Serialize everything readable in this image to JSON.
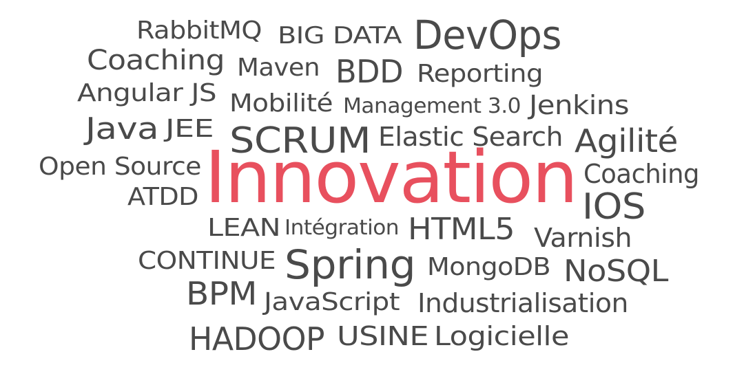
{
  "colors": {
    "text": "#4a4a4a",
    "highlight": "#e8505e",
    "background": "#ffffff"
  },
  "words": [
    {
      "id": "rabbitmq",
      "text": "RabbitMQ"
    },
    {
      "id": "big-data",
      "text": "BIG DATA"
    },
    {
      "id": "devops",
      "text": "DevOps"
    },
    {
      "id": "coaching-1",
      "text": "Coaching"
    },
    {
      "id": "maven",
      "text": "Maven"
    },
    {
      "id": "bdd",
      "text": "BDD"
    },
    {
      "id": "reporting",
      "text": "Reporting"
    },
    {
      "id": "angular-js",
      "text": "Angular JS"
    },
    {
      "id": "mobilite",
      "text": "Mobilité"
    },
    {
      "id": "management-3-0",
      "text": "Management 3.0"
    },
    {
      "id": "jenkins",
      "text": "Jenkins"
    },
    {
      "id": "java",
      "text": "Java"
    },
    {
      "id": "jee",
      "text": "JEE"
    },
    {
      "id": "scrum",
      "text": "SCRUM"
    },
    {
      "id": "elastic-search",
      "text": "Elastic Search"
    },
    {
      "id": "agilite",
      "text": "Agilité"
    },
    {
      "id": "open-source",
      "text": "Open Source"
    },
    {
      "id": "innovation",
      "text": "Innovation",
      "highlight": true
    },
    {
      "id": "coaching-2",
      "text": "Coaching"
    },
    {
      "id": "atdd",
      "text": "ATDD"
    },
    {
      "id": "ios",
      "text": "IOS"
    },
    {
      "id": "lean",
      "text": "LEAN"
    },
    {
      "id": "integration",
      "text": "Intégration"
    },
    {
      "id": "html5",
      "text": "HTML5"
    },
    {
      "id": "varnish",
      "text": "Varnish"
    },
    {
      "id": "continue",
      "text": "CONTINUE"
    },
    {
      "id": "spring",
      "text": "Spring"
    },
    {
      "id": "mongodb",
      "text": "MongoDB"
    },
    {
      "id": "nosql",
      "text": "NoSQL"
    },
    {
      "id": "bpm",
      "text": "BPM"
    },
    {
      "id": "javascript",
      "text": "JavaScript"
    },
    {
      "id": "industrialisation",
      "text": "Industrialisation"
    },
    {
      "id": "hadoop",
      "text": "HADOOP"
    },
    {
      "id": "usine",
      "text": "USINE"
    },
    {
      "id": "logicielle",
      "text": "Logicielle"
    }
  ]
}
